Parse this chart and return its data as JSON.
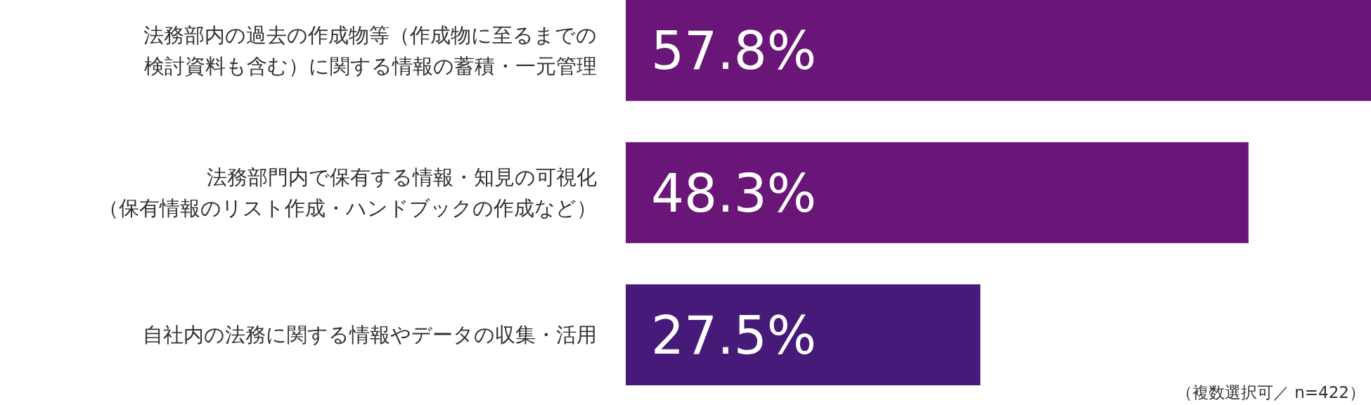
{
  "chart_data": {
    "type": "bar",
    "orientation": "horizontal",
    "categories": [
      "法務部内の過去の作成物等（作成物に至るまでの検討資料も含む）に関する情報の蓄積・一元管理",
      "法務部門内で保有する情報・知見の可視化（保有情報のリスト作成・ハンドブックの作成など）",
      "自社内の法務に関する情報やデータの収集・活用"
    ],
    "values": [
      57.8,
      48.3,
      27.5
    ],
    "colors": [
      "#6a1678",
      "#6a1678",
      "#461a78"
    ],
    "value_labels": [
      "57.8%",
      "48.3%",
      "27.5%"
    ],
    "annotations": [
      "（複数選択可／ n=422）"
    ]
  }
}
